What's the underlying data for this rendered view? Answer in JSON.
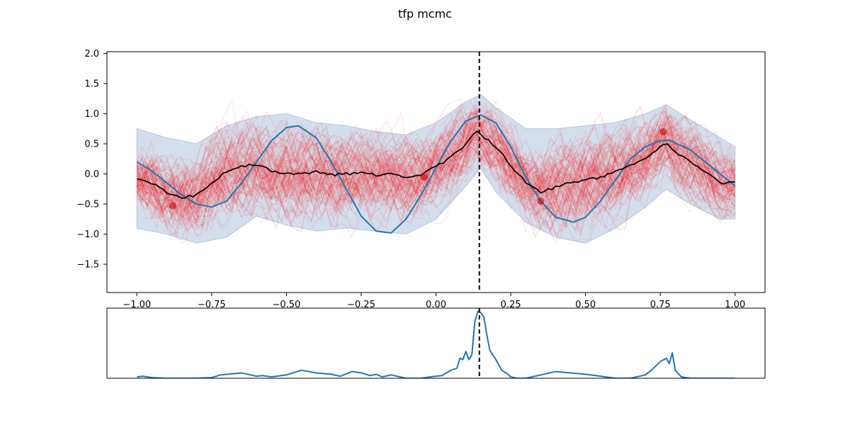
{
  "figure": {
    "title": "tfp mcmc"
  },
  "colors": {
    "true_function": "#1f77b4",
    "samples": "#ff0000",
    "band": "#b0c4de",
    "mean": "#000000",
    "marker": "#000000",
    "density": "#1f77b4"
  },
  "chart_data": [
    {
      "type": "line",
      "title": "",
      "xlabel": "",
      "ylabel": "",
      "xlim": [
        -1.1,
        1.1
      ],
      "ylim": [
        -1.97,
        2.03
      ],
      "grid": false,
      "x_ticks": [
        -1.0,
        -0.75,
        -0.5,
        -0.25,
        0.0,
        0.25,
        0.5,
        0.75,
        1.0
      ],
      "x_tick_labels": [
        "−1.00",
        "−0.75",
        "−0.50",
        "−0.25",
        "0.00",
        "0.25",
        "0.50",
        "0.75",
        "1.00"
      ],
      "y_ticks": [
        -1.5,
        -1.0,
        -0.5,
        0.0,
        0.5,
        1.0,
        1.5,
        2.0
      ],
      "y_tick_labels": [
        "−1.5",
        "−1.0",
        "−0.5",
        "0.0",
        "0.5",
        "1.0",
        "1.5",
        "2.0"
      ],
      "vline_x": 0.145,
      "series": [
        {
          "role": "true_function",
          "x": [
            -1.0,
            -0.95,
            -0.9,
            -0.85,
            -0.8,
            -0.75,
            -0.7,
            -0.65,
            -0.6,
            -0.55,
            -0.5,
            -0.46,
            -0.4,
            -0.35,
            -0.3,
            -0.25,
            -0.2,
            -0.15,
            -0.1,
            -0.05,
            0.0,
            0.05,
            0.1,
            0.15,
            0.2,
            0.25,
            0.3,
            0.35,
            0.4,
            0.46,
            0.5,
            0.55,
            0.6,
            0.65,
            0.7,
            0.75,
            0.78,
            0.85,
            0.9,
            0.95,
            1.0
          ],
          "y": [
            0.2,
            0.05,
            -0.15,
            -0.35,
            -0.5,
            -0.55,
            -0.45,
            -0.15,
            0.2,
            0.55,
            0.77,
            0.8,
            0.6,
            0.2,
            -0.25,
            -0.7,
            -0.95,
            -0.98,
            -0.75,
            -0.35,
            0.1,
            0.55,
            0.88,
            0.98,
            0.85,
            0.45,
            -0.05,
            -0.45,
            -0.72,
            -0.8,
            -0.72,
            -0.45,
            -0.1,
            0.25,
            0.45,
            0.55,
            0.56,
            0.4,
            0.2,
            0.0,
            -0.2
          ]
        },
        {
          "role": "posterior_mean",
          "x": [
            -1.0,
            -0.95,
            -0.9,
            -0.85,
            -0.8,
            -0.75,
            -0.7,
            -0.65,
            -0.6,
            -0.55,
            -0.5,
            -0.45,
            -0.4,
            -0.35,
            -0.3,
            -0.25,
            -0.2,
            -0.15,
            -0.1,
            -0.05,
            0.0,
            0.05,
            0.1,
            0.13,
            0.15,
            0.2,
            0.25,
            0.3,
            0.35,
            0.4,
            0.45,
            0.5,
            0.55,
            0.6,
            0.65,
            0.7,
            0.75,
            0.77,
            0.8,
            0.85,
            0.9,
            0.95,
            1.0
          ],
          "y": [
            -0.08,
            -0.15,
            -0.3,
            -0.4,
            -0.35,
            -0.15,
            0.05,
            0.12,
            0.15,
            0.05,
            0.02,
            0.0,
            0.05,
            -0.02,
            0.0,
            0.02,
            -0.02,
            0.0,
            -0.05,
            -0.02,
            0.12,
            0.28,
            0.5,
            0.72,
            0.65,
            0.45,
            0.15,
            -0.15,
            -0.3,
            -0.22,
            -0.15,
            -0.1,
            -0.05,
            0.05,
            0.15,
            0.25,
            0.45,
            0.55,
            0.35,
            0.2,
            0.05,
            -0.15,
            -0.15
          ]
        },
        {
          "role": "uncertainty_band",
          "x": [
            -1.0,
            -0.9,
            -0.8,
            -0.7,
            -0.6,
            -0.5,
            -0.4,
            -0.3,
            -0.2,
            -0.1,
            0.0,
            0.1,
            0.15,
            0.2,
            0.3,
            0.4,
            0.5,
            0.6,
            0.7,
            0.77,
            0.85,
            0.95,
            1.0
          ],
          "upper": [
            0.75,
            0.6,
            0.5,
            0.8,
            0.95,
            1.0,
            0.85,
            0.8,
            0.7,
            0.65,
            0.85,
            1.2,
            1.32,
            1.1,
            0.75,
            0.75,
            0.8,
            0.85,
            1.0,
            1.15,
            0.9,
            0.6,
            0.45
          ],
          "lower": [
            -0.9,
            -1.0,
            -1.15,
            -1.05,
            -0.7,
            -0.85,
            -0.95,
            -0.9,
            -0.95,
            -1.0,
            -0.75,
            -0.2,
            0.1,
            -0.3,
            -0.8,
            -1.05,
            -1.15,
            -0.9,
            -0.55,
            -0.25,
            -0.5,
            -0.75,
            -0.75
          ]
        }
      ],
      "markers": [
        {
          "x": -0.88,
          "y": -0.53
        },
        {
          "x": -0.04,
          "y": -0.05
        },
        {
          "x": 0.35,
          "y": -0.45
        },
        {
          "x": 0.76,
          "y": 0.7
        }
      ]
    },
    {
      "type": "line",
      "title": "",
      "xlabel": "",
      "ylabel": "",
      "xlim": [
        -1.1,
        1.1
      ],
      "ylim": [
        0,
        1.05
      ],
      "grid": false,
      "ticks_visible": false,
      "vline_x": 0.145,
      "series": [
        {
          "role": "acquisition_density",
          "x": [
            -1.0,
            -0.98,
            -0.95,
            -0.9,
            -0.85,
            -0.8,
            -0.75,
            -0.72,
            -0.65,
            -0.6,
            -0.58,
            -0.55,
            -0.5,
            -0.45,
            -0.4,
            -0.35,
            -0.32,
            -0.28,
            -0.25,
            -0.22,
            -0.2,
            -0.18,
            -0.15,
            -0.1,
            -0.08,
            -0.05,
            -0.02,
            0.0,
            0.02,
            0.05,
            0.07,
            0.08,
            0.09,
            0.1,
            0.11,
            0.12,
            0.13,
            0.14,
            0.15,
            0.16,
            0.17,
            0.18,
            0.2,
            0.22,
            0.24,
            0.25,
            0.27,
            0.3,
            0.35,
            0.4,
            0.45,
            0.5,
            0.55,
            0.6,
            0.65,
            0.7,
            0.72,
            0.75,
            0.77,
            0.78,
            0.79,
            0.8,
            0.82,
            0.85,
            0.9,
            0.95,
            1.0
          ],
          "y": [
            0.02,
            0.03,
            0.01,
            0.0,
            0.0,
            0.0,
            0.01,
            0.05,
            0.08,
            0.03,
            0.04,
            0.02,
            0.05,
            0.12,
            0.08,
            0.06,
            0.03,
            0.1,
            0.08,
            0.04,
            0.06,
            0.02,
            0.05,
            0.0,
            0.0,
            0.0,
            0.02,
            0.03,
            0.04,
            0.12,
            0.15,
            0.3,
            0.28,
            0.4,
            0.28,
            0.35,
            0.85,
            1.0,
            0.98,
            0.92,
            0.65,
            0.42,
            0.28,
            0.12,
            0.06,
            0.02,
            0.0,
            0.0,
            0.05,
            0.1,
            0.08,
            0.06,
            0.03,
            0.0,
            0.0,
            0.05,
            0.12,
            0.25,
            0.3,
            0.22,
            0.38,
            0.12,
            0.02,
            0.0,
            0.0,
            0.0,
            0.0
          ]
        }
      ]
    }
  ]
}
